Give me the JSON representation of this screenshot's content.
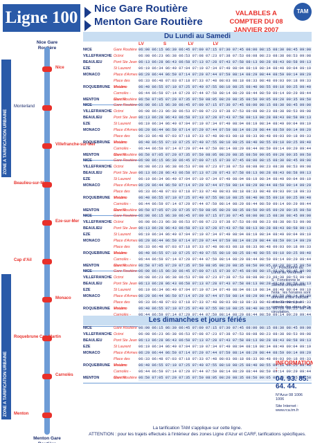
{
  "header": {
    "line": "Ligne 100",
    "dest1": "Nice Gare Routière",
    "dest2": "Menton Gare Routière",
    "valid": "VALABLES A COMPTER DU 08 JANVIER 2007",
    "logo": "TAM"
  },
  "route": {
    "zone1": "ZONE A TARIFICATION URBAINE",
    "zone2": "ZONE A TARIFICATION URBAINE",
    "top_terminus": "Nice Gare Routière",
    "bottom_terminus": "Menton Gare Routière",
    "stops": [
      {
        "label": "Nice",
        "red": true
      },
      {
        "label": "Monterland",
        "red": false
      },
      {
        "label": "Villefranche-sur-Mer",
        "red": true
      },
      {
        "label": "Beaulieu-sur-Mer",
        "red": true
      },
      {
        "label": "Eze-sur-Mer",
        "red": true
      },
      {
        "label": "Cap d'Ail",
        "red": true
      },
      {
        "label": "Monaco",
        "red": true
      },
      {
        "label": "Roquebrune Cap Martin",
        "red": true
      },
      {
        "label": "Carnolès",
        "red": true
      },
      {
        "label": "Menton",
        "red": true
      }
    ]
  },
  "sections": {
    "weekday": "Du Lundi au Samedi",
    "sunday": "Les dimanches et jours fériés"
  },
  "freq_labels": [
    "LV",
    "S",
    "LV",
    "LV"
  ],
  "rows": [
    {
      "city": "NICE",
      "stop": "Gare Routière",
      "times": "06:00 06:15 06:30 06:45 07:00 07:15 07:30 07:45 08:00 08:15 08:30 08:45 09:00"
    },
    {
      "city": "VILLEFRANCHE",
      "stop": "Octroi",
      "times": "06:08 06:23 06:38 06:53 07:08 07:23 07:38 07:53 08:08 08:23 08:38 08:53 09:08"
    },
    {
      "city": "BEAULIEU",
      "stop": "Pont Ste Jean",
      "times": "06:13 06:28 06:43 06:58 07:13 07:28 07:43 07:58 08:13 08:28 08:43 08:58 09:13"
    },
    {
      "city": "EZE",
      "stop": "St Laurent",
      "times": "06:19 06:34 06:49 07:04 07:19 07:34 07:49 08:04 08:19 08:34 08:49 09:04 09:19"
    },
    {
      "city": "MONACO",
      "stop": "Place d'Armes",
      "times": "06:29 06:44 06:59 07:14 07:29 07:44 07:59 08:14 08:29 08:44 08:59 09:14 09:29"
    },
    {
      "city": "",
      "stop": "Place des Moulins",
      "times": "06:33 06:48 07:03 07:18 07:33 07:48 08:03 08:18 08:33 08:48 09:03 09:18 09:33"
    },
    {
      "city": "ROQUEBRUNE",
      "stop": "Vistaero",
      "times": "06:40 06:55 07:10 07:25 07:40 07:55 08:10 08:25 08:40 08:55 09:10 09:25 09:40"
    },
    {
      "city": "",
      "stop": "Carnolès - Marché",
      "times": "06:44 06:59 07:14 07:29 07:44 07:59 08:14 08:29 08:44 08:59 09:14 09:29 09:44"
    },
    {
      "city": "MENTON",
      "stop": "Gare Routière",
      "times": "06:50 07:05 07:20 07:35 07:50 08:05 08:20 08:35 08:50 09:05 09:20 09:35 09:50"
    }
  ],
  "legend": {
    "lv": "LV : Fonctionne du Lundi au Vendredi",
    "s": "S : Fonctionne le Samedi uniquement",
    "note": "Nota : les horaires sont donnés à titre indicatif et ne tiennent pas compte des aléas de la circulation."
  },
  "info": {
    "title": "INFORMATIONS :",
    "phone": "04. 93. 85. 64. 44.",
    "azur": "N°Azur 08 1006 1006",
    "site": "Site Internet : www.rca.tm.fr"
  },
  "footer": {
    "line1": "La tarification TAM s'applique sur cette ligne.",
    "line2": "ATTENTION : pour les trajets effectués à l'intérieur des zones Ligne d'Azur et CARF, tarifications spécifiques."
  }
}
